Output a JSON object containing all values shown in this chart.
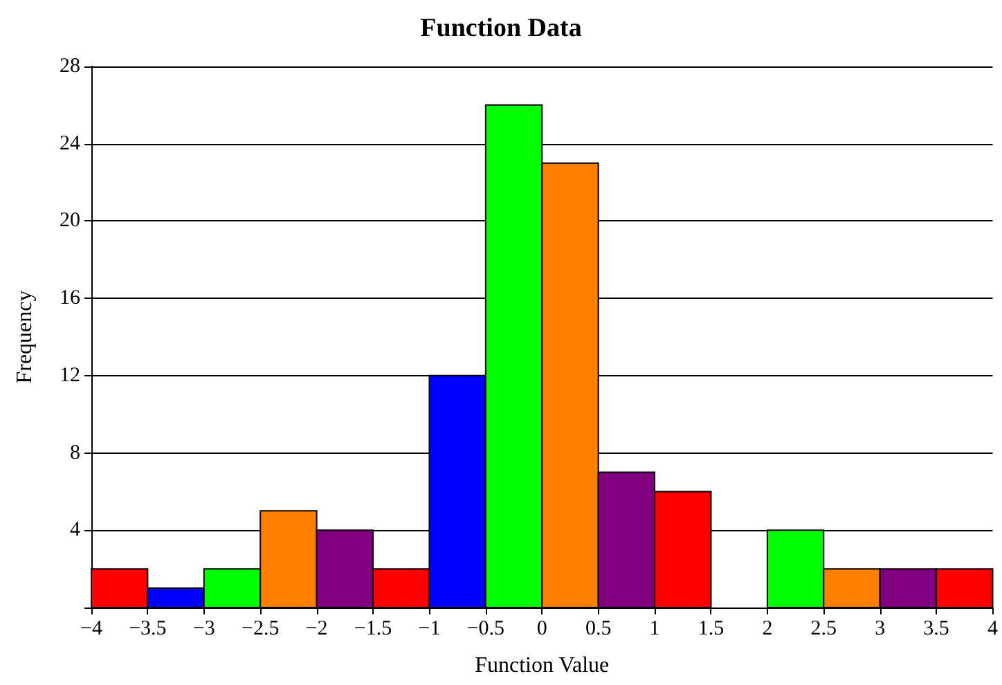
{
  "chart_data": {
    "type": "histogram",
    "title": "Function Data",
    "xlabel": "Function Value",
    "ylabel": "Frequency",
    "bins": [
      -4,
      -3.5,
      -3,
      -2.5,
      -2,
      -1.5,
      -1,
      -0.5,
      0,
      0.5,
      1,
      1.5,
      2,
      2.5,
      3,
      3.5,
      4
    ],
    "values": [
      2,
      1,
      2,
      5,
      4,
      2,
      12,
      26,
      23,
      7,
      6,
      0,
      4,
      2,
      2,
      2
    ],
    "colors": [
      "#ff0000",
      "#0000ff",
      "#00ff00",
      "#ff8000",
      "#800080",
      "#ff0000",
      "#0000ff",
      "#00ff00",
      "#ff8000",
      "#800080",
      "#ff0000",
      null,
      "#00ff00",
      "#ff8000",
      "#800080",
      "#ff0000"
    ],
    "xlim": [
      -4,
      4
    ],
    "xticks": [
      -4,
      -3.5,
      -3,
      -2.5,
      -2,
      -1.5,
      -1,
      -0.5,
      0,
      0.5,
      1,
      1.5,
      2,
      2.5,
      3,
      3.5,
      4
    ],
    "ylim": [
      0,
      28
    ],
    "yticks": [
      {
        "value": 0,
        "label": null
      },
      4,
      8,
      12,
      16,
      20,
      24,
      28
    ],
    "grid": "y"
  }
}
